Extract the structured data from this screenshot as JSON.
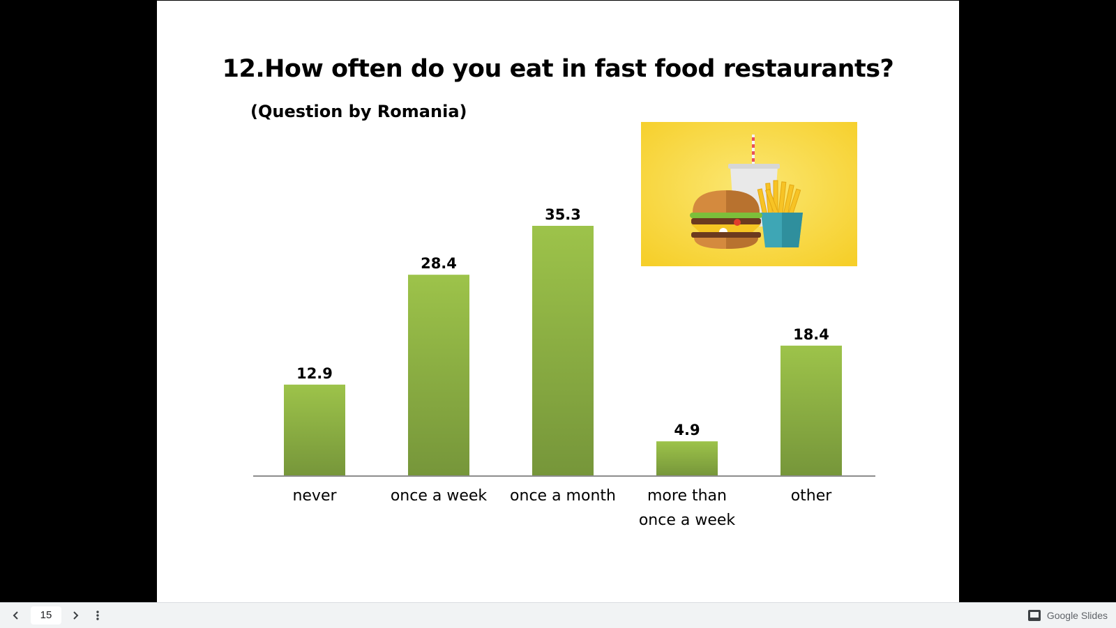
{
  "slide": {
    "title": "12.How often do you eat in fast food restaurants?",
    "subtitle": "(Question by Romania)",
    "image_icon": "fast-food-illustration"
  },
  "chart_data": {
    "type": "bar",
    "categories": [
      "never",
      "once a week",
      "once a month",
      "more than once a week",
      "other"
    ],
    "category_lines": [
      [
        "never"
      ],
      [
        "once a week"
      ],
      [
        "once a month"
      ],
      [
        "more than",
        "once a week"
      ],
      [
        "other"
      ]
    ],
    "values": [
      12.9,
      28.4,
      35.3,
      4.9,
      18.4
    ],
    "value_labels": [
      "12.9",
      "28.4",
      "35.3",
      "4.9",
      "18.4"
    ],
    "ylim": [
      0,
      35.3
    ],
    "grid": false,
    "bar_color_top": "#9dc34a",
    "bar_color_bottom": "#76963a"
  },
  "toolbar": {
    "page_number": "15",
    "prev_icon": "chevron-left-icon",
    "next_icon": "chevron-right-icon",
    "more_icon": "more-vert-icon",
    "brand_label": "Google Slides",
    "brand_icon": "slides-icon"
  }
}
